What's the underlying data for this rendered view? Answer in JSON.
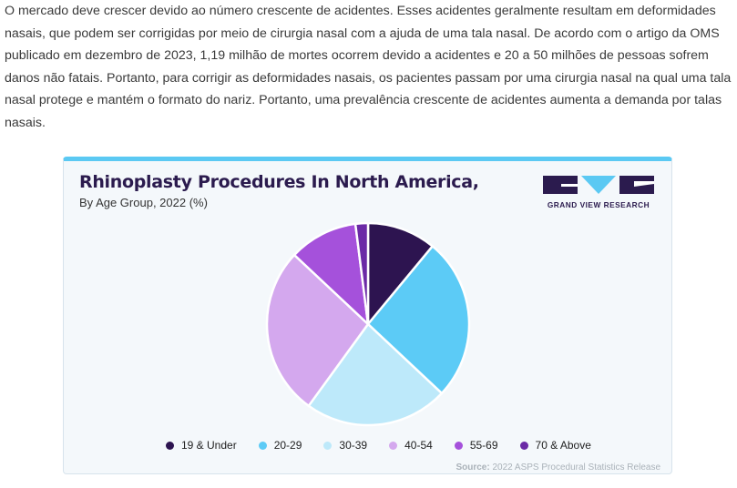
{
  "article": {
    "paragraph": "O mercado deve crescer devido ao número crescente de acidentes. Esses acidentes geralmente resultam em deformidades nasais, que podem ser corrigidas por meio de cirurgia nasal com a ajuda de uma tala nasal. De acordo com o artigo da OMS publicado em dezembro de 2023, 1,19 milhão de mortes ocorrem devido a acidentes e 20 a 50 milhões de pessoas sofrem danos não fatais. Portanto, para corrigir as deformidades nasais, os pacientes passam por uma cirurgia nasal na qual uma tala nasal protege e mantém o formato do nariz. Portanto, uma prevalência crescente de acidentes aumenta a demanda por talas nasais."
  },
  "logo": {
    "text": "GRAND VIEW RESEARCH"
  },
  "source": {
    "label": "Source:",
    "text": "2022 ASPS Procedural Statistics Release"
  },
  "colors": {
    "card_border_top": "#5bc9f3",
    "title": "#2b1b4e"
  },
  "chart_data": {
    "type": "pie",
    "title": "Rhinoplasty Procedures In North America,",
    "subtitle": "By Age Group, 2022 (%)",
    "legend_position": "bottom",
    "categories": [
      "19 & Under",
      "20-29",
      "30-39",
      "40-54",
      "55-69",
      "70 & Above"
    ],
    "values": [
      11,
      26,
      23,
      27,
      11,
      2
    ],
    "colors": [
      "#2d1450",
      "#5ccbf6",
      "#bde9fa",
      "#d4a8ee",
      "#a551db",
      "#6b2aa6"
    ]
  }
}
